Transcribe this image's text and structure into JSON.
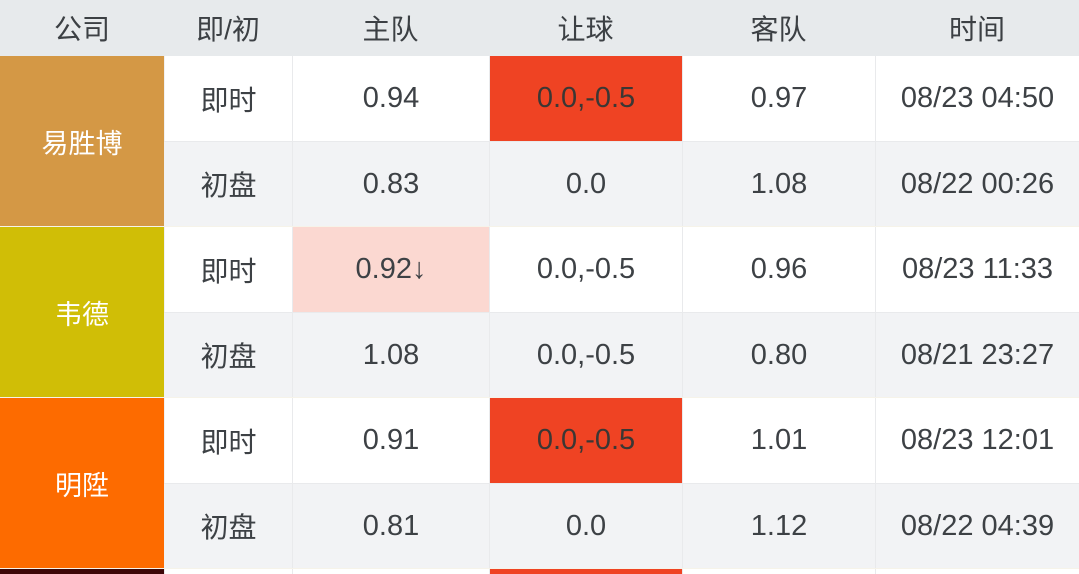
{
  "header": {
    "columns": [
      "公司",
      "即/初",
      "主队",
      "让球",
      "客队",
      "时间"
    ]
  },
  "companies": [
    {
      "name": "易胜博",
      "color": "#d49845",
      "rows": [
        {
          "type": "即时",
          "home": "0.94",
          "handicap": "0.0,-0.5",
          "away": "0.97",
          "time": "08/23 04:50",
          "handicap_highlight": "red"
        },
        {
          "type": "初盘",
          "home": "0.83",
          "handicap": "0.0",
          "away": "1.08",
          "time": "08/22 00:26"
        }
      ]
    },
    {
      "name": "韦德",
      "color": "#d0be06",
      "rows": [
        {
          "type": "即时",
          "home": "0.92↓",
          "handicap": "0.0,-0.5",
          "away": "0.96",
          "time": "08/23 11:33",
          "home_highlight": "pink"
        },
        {
          "type": "初盘",
          "home": "1.08",
          "handicap": "0.0,-0.5",
          "away": "0.80",
          "time": "08/21 23:27"
        }
      ]
    },
    {
      "name": "明陞",
      "color": "#fd6b00",
      "rows": [
        {
          "type": "即时",
          "home": "0.91",
          "handicap": "0.0,-0.5",
          "away": "1.01",
          "time": "08/23 12:01",
          "handicap_highlight": "red"
        },
        {
          "type": "初盘",
          "home": "0.81",
          "handicap": "0.0",
          "away": "1.12",
          "time": "08/22 04:39"
        }
      ]
    }
  ],
  "next_company_preview": {
    "color": "#3d0708"
  },
  "colors": {
    "header_bg": "#e7eaec",
    "row_live_bg": "#ffffff",
    "row_init_bg": "#f2f3f5",
    "red_highlight": "#ef4323",
    "pink_highlight": "#fbd8d1",
    "company_text": "#ffffff",
    "body_text": "#3d4145"
  }
}
